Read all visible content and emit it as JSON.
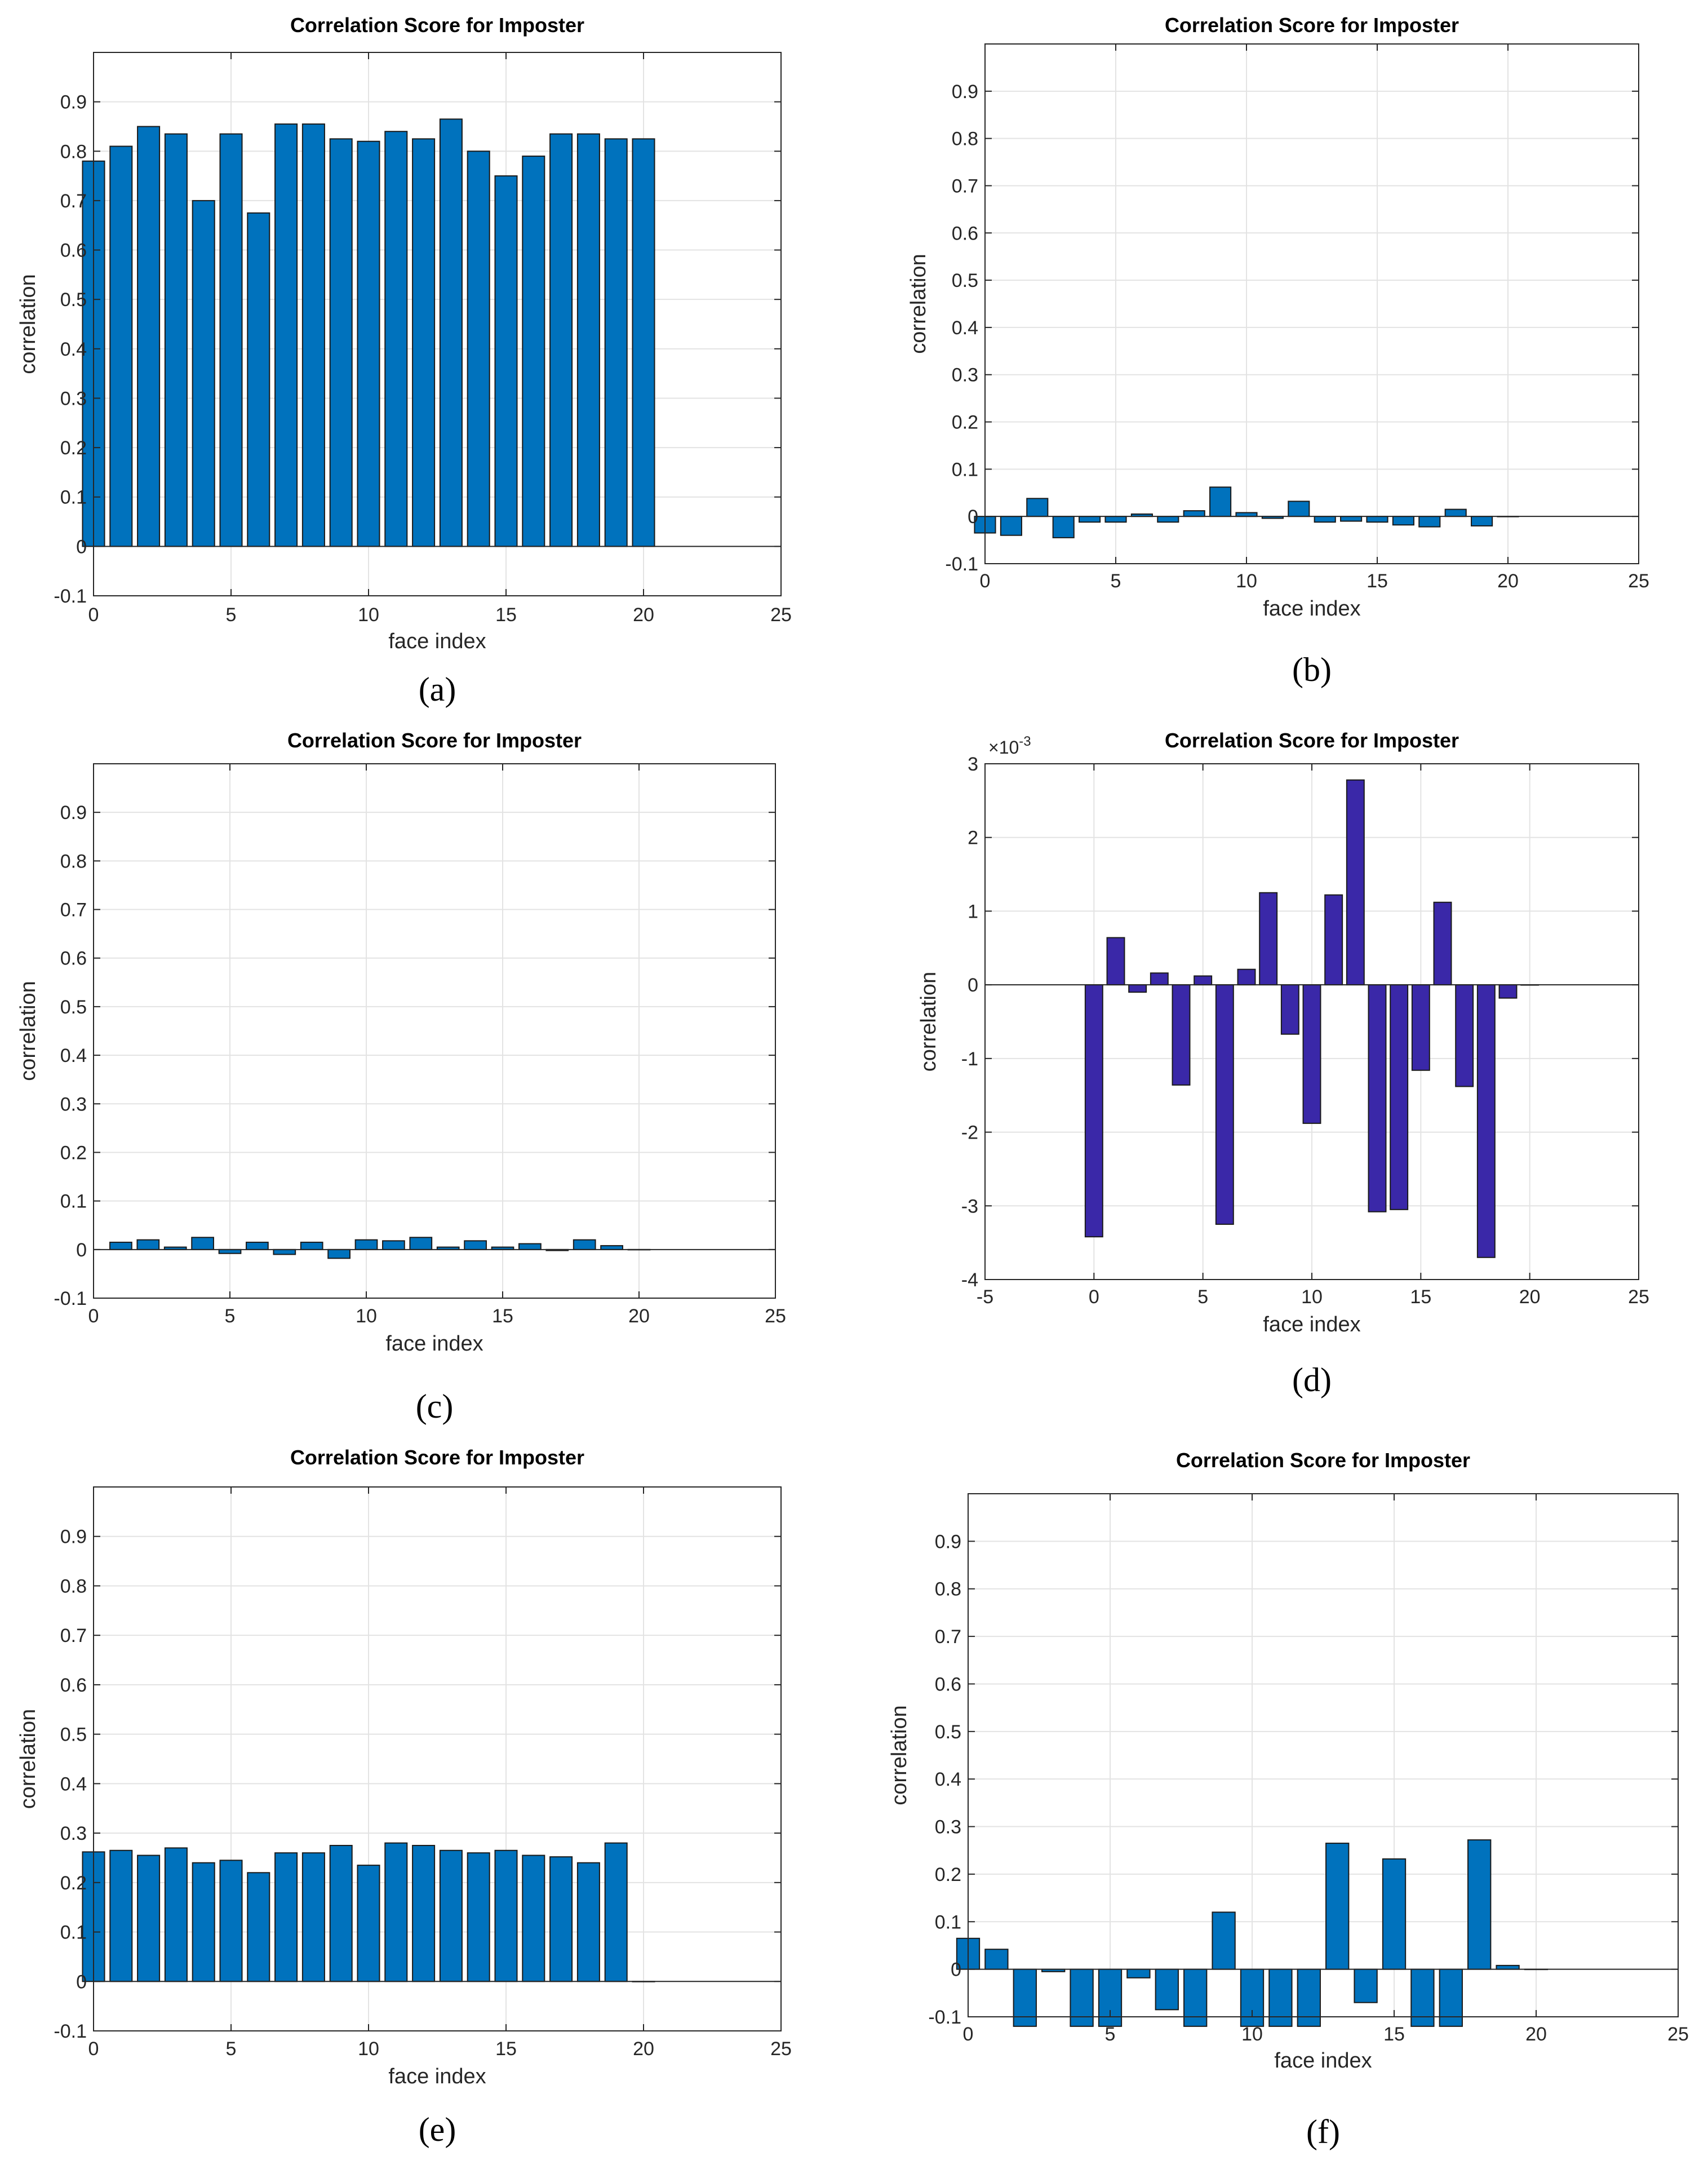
{
  "chart_data": [
    {
      "id": "a",
      "caption": "(a)",
      "type": "bar",
      "title": "Correlation Score for Imposter",
      "xlabel": "face index",
      "ylabel": "correlation",
      "xlim": [
        0,
        25
      ],
      "ylim": [
        -0.1,
        1.0
      ],
      "xticks": [
        0,
        5,
        10,
        15,
        20,
        25
      ],
      "yticks": [
        -0.1,
        0,
        0.1,
        0.2,
        0.3,
        0.4,
        0.5,
        0.6,
        0.7,
        0.8,
        0.9
      ],
      "ytick_labels": [
        "-0.1",
        "0",
        "0.1",
        "0.2",
        "0.3",
        "0.4",
        "0.5",
        "0.6",
        "0.7",
        "0.8",
        "0.9"
      ],
      "xtick_labels": [
        "0",
        "5",
        "10",
        "15",
        "20",
        "25"
      ],
      "bar_color": "#0072bd",
      "bar_width": 0.8,
      "x": [
        0,
        1,
        2,
        3,
        4,
        5,
        6,
        7,
        8,
        9,
        10,
        11,
        12,
        13,
        14,
        15,
        16,
        17,
        18,
        19,
        20
      ],
      "values": [
        0.78,
        0.81,
        0.85,
        0.835,
        0.7,
        0.835,
        0.675,
        0.855,
        0.855,
        0.825,
        0.82,
        0.84,
        0.825,
        0.865,
        0.8,
        0.75,
        0.79,
        0.835,
        0.835,
        0.825,
        0.825
      ]
    },
    {
      "id": "b",
      "caption": "(b)",
      "type": "bar",
      "title": "Correlation Score for Imposter",
      "xlabel": "face index",
      "ylabel": "correlation",
      "xlim": [
        0,
        25
      ],
      "ylim": [
        -0.1,
        1.0
      ],
      "xticks": [
        0,
        5,
        10,
        15,
        20,
        25
      ],
      "yticks": [
        -0.1,
        0,
        0.1,
        0.2,
        0.3,
        0.4,
        0.5,
        0.6,
        0.7,
        0.8,
        0.9
      ],
      "ytick_labels": [
        "-0.1",
        "0",
        "0.1",
        "0.2",
        "0.3",
        "0.4",
        "0.5",
        "0.6",
        "0.7",
        "0.8",
        "0.9"
      ],
      "xtick_labels": [
        "0",
        "5",
        "10",
        "15",
        "20",
        "25"
      ],
      "bar_color": "#0072bd",
      "bar_width": 0.8,
      "x": [
        0,
        1,
        2,
        3,
        4,
        5,
        6,
        7,
        8,
        9,
        10,
        11,
        12,
        13,
        14,
        15,
        16,
        17,
        18,
        19,
        20
      ],
      "values": [
        -0.035,
        -0.04,
        0.038,
        -0.045,
        -0.012,
        -0.012,
        0.005,
        -0.012,
        0.012,
        0.062,
        0.008,
        -0.004,
        0.032,
        -0.012,
        -0.01,
        -0.012,
        -0.018,
        -0.022,
        0.015,
        -0.02,
        0
      ]
    },
    {
      "id": "c",
      "caption": "(c)",
      "type": "bar",
      "title": "Correlation Score for Imposter",
      "xlabel": "face index",
      "ylabel": "correlation",
      "xlim": [
        0,
        25
      ],
      "ylim": [
        -0.1,
        1.0
      ],
      "xticks": [
        0,
        5,
        10,
        15,
        20,
        25
      ],
      "yticks": [
        -0.1,
        0,
        0.1,
        0.2,
        0.3,
        0.4,
        0.5,
        0.6,
        0.7,
        0.8,
        0.9
      ],
      "ytick_labels": [
        "-0.1",
        "0",
        "0.1",
        "0.2",
        "0.3",
        "0.4",
        "0.5",
        "0.6",
        "0.7",
        "0.8",
        "0.9"
      ],
      "xtick_labels": [
        "0",
        "5",
        "10",
        "15",
        "20",
        "25"
      ],
      "bar_color": "#0072bd",
      "bar_width": 0.8,
      "x": [
        1,
        2,
        3,
        4,
        5,
        6,
        7,
        8,
        9,
        10,
        11,
        12,
        13,
        14,
        15,
        16,
        17,
        18,
        19,
        20
      ],
      "values": [
        0.015,
        0.02,
        0.005,
        0.025,
        -0.008,
        0.015,
        -0.01,
        0.015,
        -0.018,
        0.02,
        0.018,
        0.025,
        0.005,
        0.018,
        0.005,
        0.012,
        -0.002,
        0.02,
        0.008,
        0.0
      ]
    },
    {
      "id": "d",
      "caption": "(d)",
      "type": "bar",
      "title": "Correlation Score for Imposter",
      "xlabel": "face index",
      "ylabel": "correlation",
      "multiplier_label": "×10",
      "multiplier_exponent": "-3",
      "xlim": [
        -5,
        25
      ],
      "ylim": [
        -4,
        3
      ],
      "xticks": [
        -5,
        0,
        5,
        10,
        15,
        20,
        25
      ],
      "yticks": [
        -4,
        -3,
        -2,
        -1,
        0,
        1,
        2,
        3
      ],
      "ytick_labels": [
        "-4",
        "-3",
        "-2",
        "-1",
        "0",
        "1",
        "2",
        "3"
      ],
      "xtick_labels": [
        "-5",
        "0",
        "5",
        "10",
        "15",
        "20",
        "25"
      ],
      "bar_color": "#3a28a8",
      "bar_width": 0.8,
      "x": [
        0,
        1,
        2,
        3,
        4,
        5,
        6,
        7,
        8,
        9,
        10,
        11,
        12,
        13,
        14,
        15,
        16,
        17,
        18,
        19,
        20
      ],
      "values": [
        -3.42,
        0.64,
        -0.1,
        0.16,
        -1.36,
        0.12,
        -3.25,
        0.21,
        1.25,
        -0.67,
        -1.88,
        1.22,
        2.78,
        -3.08,
        -3.05,
        -1.16,
        1.12,
        -1.38,
        -3.7,
        -0.18,
        0
      ]
    },
    {
      "id": "e",
      "caption": "(e)",
      "type": "bar",
      "title": "Correlation Score for Imposter",
      "xlabel": "face index",
      "ylabel": "correlation",
      "xlim": [
        0,
        25
      ],
      "ylim": [
        -0.1,
        1.0
      ],
      "xticks": [
        0,
        5,
        10,
        15,
        20,
        25
      ],
      "yticks": [
        -0.1,
        0,
        0.1,
        0.2,
        0.3,
        0.4,
        0.5,
        0.6,
        0.7,
        0.8,
        0.9
      ],
      "ytick_labels": [
        "-0.1",
        "0",
        "0.1",
        "0.2",
        "0.3",
        "0.4",
        "0.5",
        "0.6",
        "0.7",
        "0.8",
        "0.9"
      ],
      "xtick_labels": [
        "0",
        "5",
        "10",
        "15",
        "20",
        "25"
      ],
      "bar_color": "#0072bd",
      "bar_width": 0.8,
      "x": [
        0,
        1,
        2,
        3,
        4,
        5,
        6,
        7,
        8,
        9,
        10,
        11,
        12,
        13,
        14,
        15,
        16,
        17,
        18,
        19,
        20
      ],
      "values": [
        0.262,
        0.265,
        0.255,
        0.27,
        0.24,
        0.245,
        0.22,
        0.26,
        0.26,
        0.275,
        0.235,
        0.28,
        0.275,
        0.265,
        0.26,
        0.265,
        0.255,
        0.252,
        0.24,
        0.28,
        0.0
      ]
    },
    {
      "id": "f",
      "caption": "(f)",
      "type": "bar",
      "title": "Correlation Score for Imposter",
      "xlabel": "face index",
      "ylabel": "correlation",
      "xlim": [
        0,
        25
      ],
      "ylim": [
        -0.1,
        1.0
      ],
      "xticks": [
        0,
        5,
        10,
        15,
        20,
        25
      ],
      "yticks": [
        -0.1,
        0,
        0.1,
        0.2,
        0.3,
        0.4,
        0.5,
        0.6,
        0.7,
        0.8,
        0.9
      ],
      "ytick_labels": [
        "-0.1",
        "0",
        "0.1",
        "0.2",
        "0.3",
        "0.4",
        "0.5",
        "0.6",
        "0.7",
        "0.8",
        "0.9"
      ],
      "xtick_labels": [
        "0",
        "5",
        "10",
        "15",
        "20",
        "25"
      ],
      "bar_color": "#0072bd",
      "bar_width": 0.8,
      "x": [
        0,
        1,
        2,
        3,
        4,
        5,
        6,
        7,
        8,
        9,
        10,
        11,
        12,
        13,
        14,
        15,
        16,
        17,
        18,
        19,
        20
      ],
      "values": [
        0.065,
        0.042,
        -0.12,
        -0.005,
        -0.12,
        -0.12,
        -0.018,
        -0.085,
        -0.12,
        0.12,
        -0.12,
        -0.12,
        -0.12,
        0.265,
        -0.07,
        0.232,
        -0.12,
        -0.12,
        0.272,
        0.008,
        0
      ]
    }
  ]
}
